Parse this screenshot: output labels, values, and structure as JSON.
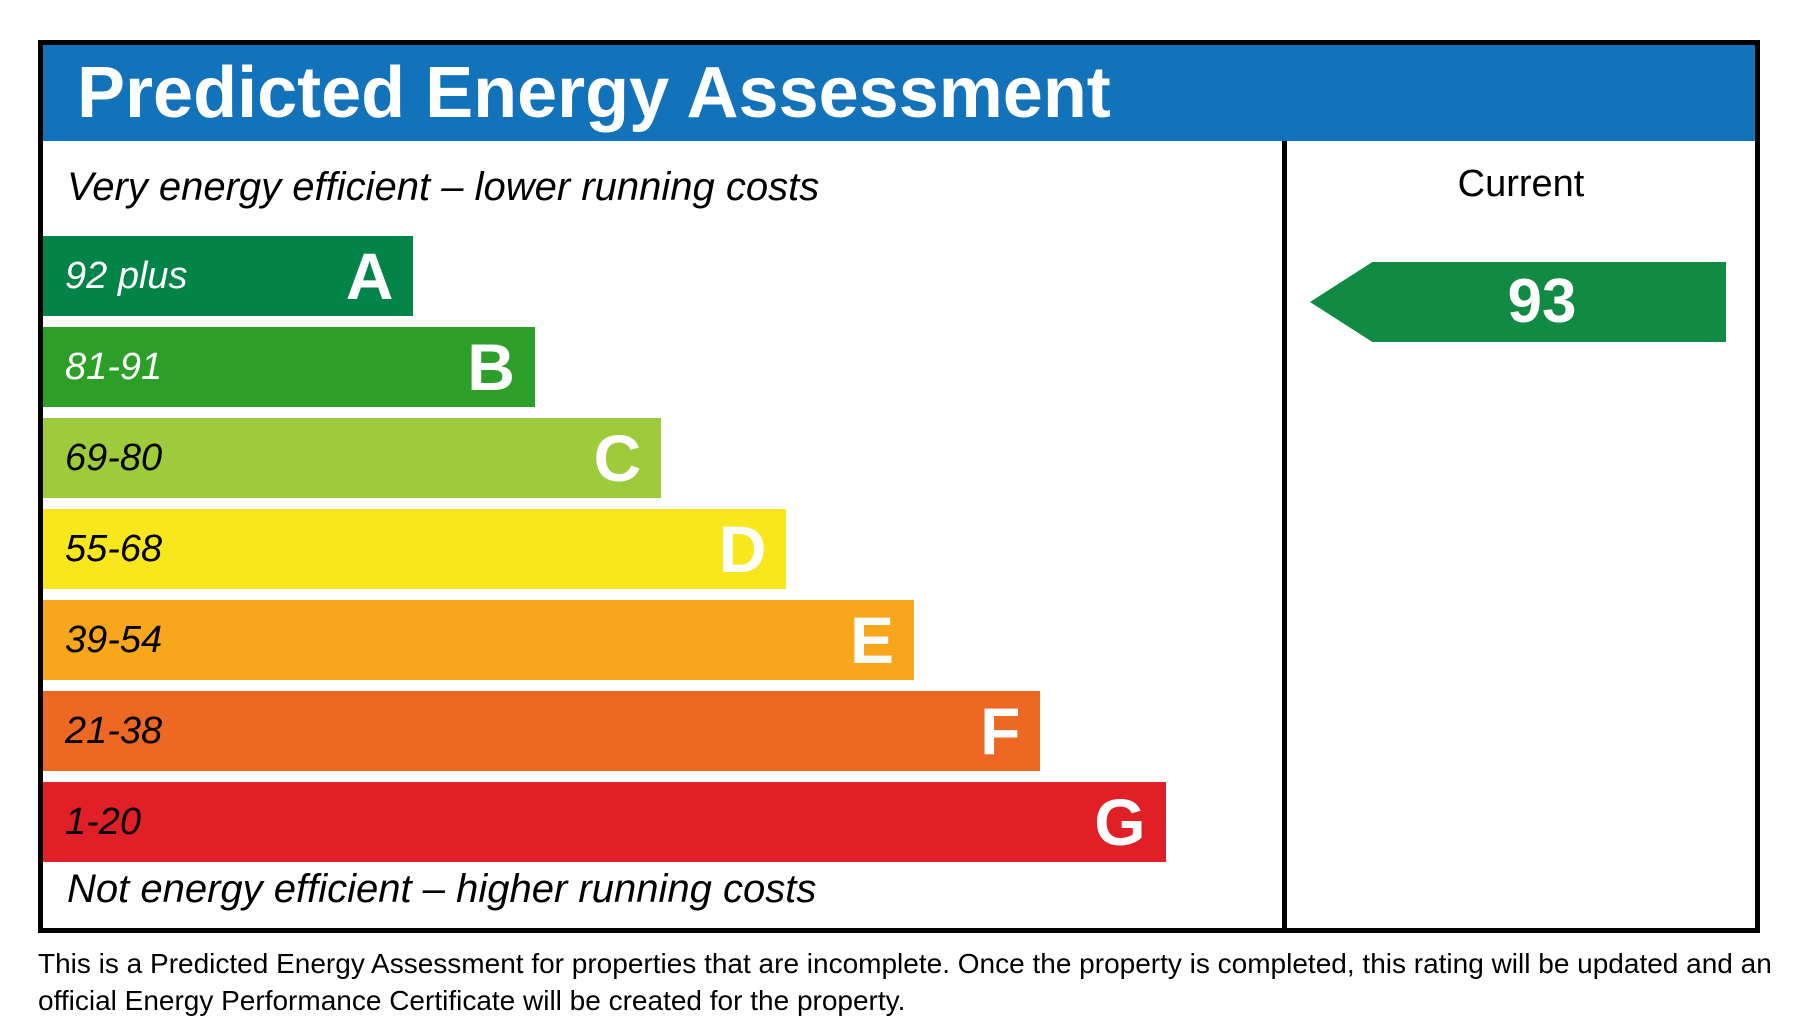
{
  "title": "Predicted Energy Assessment",
  "colors": {
    "header_blue": "#1373ba",
    "border_black": "#000000",
    "arrow_green": "#118a43"
  },
  "captions": {
    "top": "Very energy efficient – lower running costs",
    "bottom": "Not energy efficient – higher running costs"
  },
  "current": {
    "label": "Current",
    "value": "93"
  },
  "bands": [
    {
      "letter": "A",
      "range": "92 plus",
      "color": "#028348",
      "range_text_color": "#ffffff",
      "width_pct": 29.9
    },
    {
      "letter": "B",
      "range": "81-91",
      "color": "#2c9f29",
      "range_text_color": "#ffffff",
      "width_pct": 39.7
    },
    {
      "letter": "C",
      "range": "69-80",
      "color": "#9dcb3c",
      "range_text_color": "#000000",
      "width_pct": 49.9
    },
    {
      "letter": "D",
      "range": "55-68",
      "color": "#f8e71c",
      "range_text_color": "#000000",
      "width_pct": 60.0
    },
    {
      "letter": "E",
      "range": "39-54",
      "color": "#f8a61b",
      "range_text_color": "#000000",
      "width_pct": 70.3
    },
    {
      "letter": "F",
      "range": "21-38",
      "color": "#ec6823",
      "range_text_color": "#000000",
      "width_pct": 80.5
    },
    {
      "letter": "G",
      "range": "1-20",
      "color": "#e01f26",
      "range_text_color": "#000000",
      "width_pct": 90.6
    }
  ],
  "footer": {
    "line1": "This is a Predicted Energy Assessment for properties that are incomplete. Once the property is completed, this rating will be updated and an",
    "line2": "official Energy Performance Certificate will be created for the property."
  },
  "chart_data": {
    "type": "bar",
    "title": "Predicted Energy Assessment",
    "orientation": "horizontal",
    "categories": [
      "A",
      "B",
      "C",
      "D",
      "E",
      "F",
      "G"
    ],
    "ranges": [
      "92 plus",
      "81-91",
      "69-80",
      "55-68",
      "39-54",
      "21-38",
      "1-20"
    ],
    "bar_length_pct": [
      29.9,
      39.7,
      49.9,
      60.0,
      70.3,
      80.5,
      90.6
    ],
    "bar_colors": [
      "#028348",
      "#2c9f29",
      "#9dcb3c",
      "#f8e71c",
      "#f8a61b",
      "#ec6823",
      "#e01f26"
    ],
    "top_caption": "Very energy efficient – lower running costs",
    "bottom_caption": "Not energy efficient – higher running costs",
    "current_rating": {
      "column_label": "Current",
      "value": 93,
      "band": "A",
      "arrow_color": "#118a43"
    },
    "legend_position": "none",
    "grid": false
  }
}
